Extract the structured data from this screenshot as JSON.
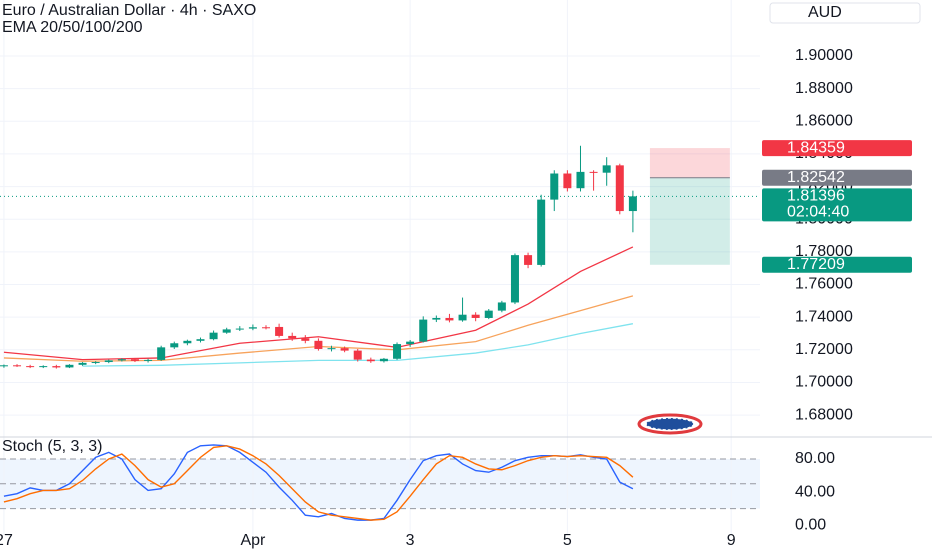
{
  "header": {
    "title": "Euro / Australian Dollar · 4h · SAXO",
    "indicator": "EMA 20/50/100/200",
    "currency": "AUD"
  },
  "chart_data": [
    {
      "type": "candlestick",
      "x": [
        0,
        1,
        2,
        3,
        4,
        5,
        6,
        7,
        8,
        9,
        10,
        11,
        12,
        13,
        14,
        15,
        16,
        17,
        18,
        19,
        20,
        21,
        22,
        23,
        24,
        25,
        26,
        27,
        28,
        29,
        30,
        31,
        32,
        33,
        34,
        35,
        36,
        37,
        38,
        39,
        40,
        41,
        42,
        43,
        44,
        45,
        46,
        47,
        48
      ],
      "open": [
        1.71,
        1.7105,
        1.71,
        1.7095,
        1.71,
        1.7092,
        1.7108,
        1.712,
        1.7125,
        1.7135,
        1.7142,
        1.7132,
        1.7138,
        1.7215,
        1.724,
        1.7255,
        1.7265,
        1.7305,
        1.7325,
        1.733,
        1.7338,
        1.734,
        1.7285,
        1.727,
        1.7255,
        1.7205,
        1.721,
        1.7195,
        1.714,
        1.713,
        1.7145,
        1.7235,
        1.725,
        1.7385,
        1.7395,
        1.738,
        1.7415,
        1.7395,
        1.744,
        1.749,
        1.778,
        1.772,
        1.812,
        1.828,
        1.819,
        1.829,
        1.8285,
        1.833,
        1.805
      ],
      "high": [
        1.711,
        1.7112,
        1.7108,
        1.7105,
        1.7108,
        1.7112,
        1.7125,
        1.713,
        1.714,
        1.7148,
        1.715,
        1.7145,
        1.7225,
        1.725,
        1.7262,
        1.7275,
        1.7318,
        1.7335,
        1.7345,
        1.7355,
        1.735,
        1.736,
        1.7305,
        1.729,
        1.727,
        1.7225,
        1.722,
        1.7205,
        1.7152,
        1.715,
        1.7245,
        1.726,
        1.7405,
        1.741,
        1.742,
        1.752,
        1.743,
        1.745,
        1.75,
        1.779,
        1.7795,
        1.815,
        1.83,
        1.83,
        1.845,
        1.83,
        1.838,
        1.834,
        1.8175
      ],
      "low": [
        1.709,
        1.7095,
        1.7088,
        1.7088,
        1.7085,
        1.7088,
        1.7102,
        1.7112,
        1.7118,
        1.7128,
        1.7125,
        1.7122,
        1.7132,
        1.7205,
        1.7228,
        1.7245,
        1.7258,
        1.7298,
        1.7315,
        1.732,
        1.7325,
        1.7275,
        1.7255,
        1.724,
        1.7195,
        1.719,
        1.7185,
        1.7128,
        1.712,
        1.7122,
        1.7138,
        1.7218,
        1.7245,
        1.737,
        1.7368,
        1.7372,
        1.7375,
        1.7388,
        1.743,
        1.748,
        1.77,
        1.771,
        1.805,
        1.817,
        1.817,
        1.8175,
        1.8205,
        1.803,
        1.792
      ],
      "close": [
        1.7105,
        1.71,
        1.7095,
        1.71,
        1.7092,
        1.7108,
        1.712,
        1.7125,
        1.7135,
        1.7142,
        1.7132,
        1.7138,
        1.7215,
        1.724,
        1.7255,
        1.7265,
        1.7305,
        1.7325,
        1.733,
        1.7338,
        1.7335,
        1.7285,
        1.727,
        1.7255,
        1.7205,
        1.721,
        1.7195,
        1.714,
        1.713,
        1.7145,
        1.7235,
        1.725,
        1.7385,
        1.7395,
        1.738,
        1.7415,
        1.7395,
        1.744,
        1.749,
        1.778,
        1.772,
        1.812,
        1.828,
        1.819,
        1.829,
        1.8285,
        1.833,
        1.805,
        1.814
      ],
      "up_color": "#089981",
      "down_color": "#f23645",
      "xlim": [
        -0.3,
        57.7
      ],
      "xticks": [
        {
          "value": 0,
          "label": "27"
        },
        {
          "value": 19,
          "label": "Apr"
        },
        {
          "value": 31,
          "label": "3"
        },
        {
          "value": 43,
          "label": "5"
        },
        {
          "value": 55.5,
          "label": "9"
        }
      ],
      "ylim": [
        1.6678,
        1.9343
      ],
      "yticks": [
        {
          "value": 1.68,
          "label": "1.68000"
        },
        {
          "value": 1.7,
          "label": "1.70000"
        },
        {
          "value": 1.72,
          "label": "1.72000"
        },
        {
          "value": 1.74,
          "label": "1.74000"
        },
        {
          "value": 1.76,
          "label": "1.76000"
        },
        {
          "value": 1.78,
          "label": "1.78000"
        },
        {
          "value": 1.8,
          "label": "1.80000"
        },
        {
          "value": 1.82,
          "label": "1.82000"
        },
        {
          "value": 1.84,
          "label": "1.84000"
        },
        {
          "value": 1.86,
          "label": "1.86000"
        },
        {
          "value": 1.88,
          "label": "1.88000"
        },
        {
          "value": 1.9,
          "label": "1.90000"
        }
      ],
      "grid": true,
      "lines": [
        {
          "color": "#7fe3ee",
          "x": [
            6,
            12,
            18,
            24,
            30,
            36,
            40,
            44,
            48
          ],
          "values": [
            1.71,
            1.7105,
            1.712,
            1.7135,
            1.7135,
            1.718,
            1.723,
            1.73,
            1.736
          ]
        },
        {
          "color": "#f7a35c",
          "x": [
            0,
            6,
            12,
            18,
            24,
            30,
            36,
            40,
            44,
            48
          ],
          "values": [
            1.715,
            1.713,
            1.7135,
            1.718,
            1.722,
            1.72,
            1.725,
            1.735,
            1.744,
            1.753
          ]
        },
        {
          "color": "#f23645",
          "x": [
            0,
            6,
            12,
            18,
            24,
            30,
            36,
            40,
            44,
            48
          ],
          "values": [
            1.7185,
            1.714,
            1.715,
            1.724,
            1.728,
            1.7215,
            1.732,
            1.748,
            1.768,
            1.783
          ]
        }
      ],
      "position": {
        "stop": 1.84359,
        "entry": 1.82542,
        "target": 1.77209,
        "x": [
          49.3,
          55.4
        ],
        "stop_color": "#f23645",
        "entry_color": "#787b86",
        "target_color": "#089981"
      },
      "last_price": {
        "value": 1.81396,
        "countdown": "02:04:40",
        "color": "#089981"
      }
    },
    {
      "type": "line",
      "title": "Stoch (5, 3, 3)",
      "x": [
        0,
        1,
        2,
        3,
        4,
        5,
        6,
        7,
        8,
        9,
        10,
        11,
        12,
        13,
        14,
        15,
        16,
        17,
        18,
        19,
        20,
        21,
        22,
        23,
        24,
        25,
        26,
        27,
        28,
        29,
        30,
        31,
        32,
        33,
        34,
        35,
        36,
        37,
        38,
        39,
        40,
        41,
        42,
        43,
        44,
        45,
        46,
        47,
        48
      ],
      "series": [
        {
          "color": "#2962ff",
          "values": [
            35,
            38,
            45,
            42,
            42,
            50,
            66,
            82,
            88,
            80,
            55,
            42,
            44,
            62,
            88,
            96,
            97,
            96,
            88,
            76,
            64,
            46,
            30,
            12,
            10,
            14,
            8,
            6,
            6,
            8,
            30,
            55,
            78,
            84,
            86,
            74,
            66,
            64,
            70,
            78,
            82,
            84,
            84,
            83,
            85,
            82,
            80,
            52,
            44
          ]
        },
        {
          "color": "#ff6d00",
          "values": [
            28,
            32,
            38,
            42,
            42,
            44,
            54,
            68,
            80,
            86,
            72,
            55,
            46,
            50,
            66,
            82,
            94,
            96,
            92,
            84,
            74,
            60,
            44,
            28,
            16,
            12,
            10,
            8,
            6,
            7,
            16,
            35,
            55,
            74,
            84,
            82,
            74,
            68,
            67,
            72,
            78,
            82,
            84,
            83,
            84,
            83,
            82,
            72,
            58
          ]
        }
      ],
      "ylim": [
        -12,
        103
      ],
      "yticks": [
        {
          "value": 0,
          "label": "0.00"
        },
        {
          "value": 40,
          "label": "40.00"
        },
        {
          "value": 80,
          "label": "80.00"
        }
      ],
      "band_levels": [
        80,
        50,
        20
      ],
      "band_color": "#e3effd"
    }
  ]
}
